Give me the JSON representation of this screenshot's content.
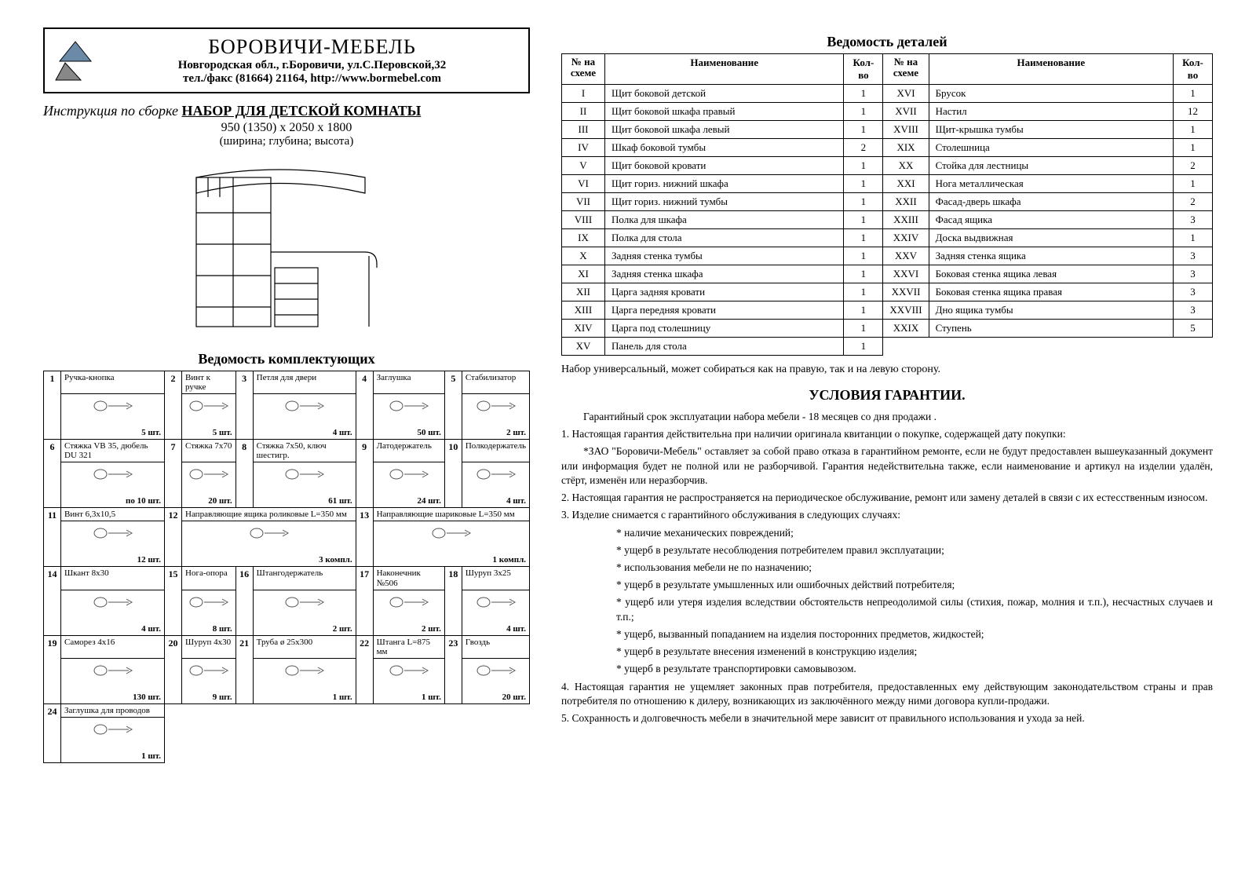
{
  "company": {
    "name": "БОРОВИЧИ-МЕБЕЛЬ",
    "address": "Новгородская обл., г.Боровичи, ул.С.Перовской,32",
    "contact": "тел./факс (81664) 21164, http://www.bormebel.com"
  },
  "instruction": {
    "prefix": "Инструкция по сборке ",
    "title": "НАБОР ДЛЯ ДЕТСКОЙ КОМНАТЫ",
    "dimensions": "950 (1350) x 2050 x 1800",
    "dims_note": "(ширина; глубина; высота)"
  },
  "hardware_title": "Ведомость комплектующих",
  "hardware_rows": [
    [
      {
        "n": "1",
        "name": "Ручка-кнопка",
        "qty": "5 шт."
      },
      {
        "n": "2",
        "name": "Винт к ручке",
        "qty": "5 шт."
      },
      {
        "n": "3",
        "name": "Петля для двери",
        "qty": "4 шт."
      },
      {
        "n": "4",
        "name": "Заглушка",
        "qty": "50 шт."
      },
      {
        "n": "5",
        "name": "Стабилизатор",
        "qty": "2 шт."
      }
    ],
    [
      {
        "n": "6",
        "name": "Стяжка VB 35, дюбель DU 321",
        "qty": "по 10 шт."
      },
      {
        "n": "7",
        "name": "Стяжка 7x70",
        "qty": "20 шт."
      },
      {
        "n": "8",
        "name": "Стяжка 7x50, ключ шестигр.",
        "qty": "61 шт."
      },
      {
        "n": "9",
        "name": "Латодержатель",
        "qty": "24 шт."
      },
      {
        "n": "10",
        "name": "Полкодержатель",
        "qty": "4 шт."
      }
    ],
    [
      {
        "n": "11",
        "name": "Винт 6,3x10,5",
        "qty": "12 шт."
      },
      {
        "n": "12",
        "name": "Направляющие ящика роликовые L=350 мм",
        "qty": "3 компл.",
        "wide": true
      },
      {
        "n": "13",
        "name": "Направляющие шариковые L=350 мм",
        "qty": "1 компл.",
        "wide": true
      }
    ],
    [
      {
        "n": "14",
        "name": "Шкант 8x30",
        "qty": "4 шт."
      },
      {
        "n": "15",
        "name": "Нога-опора",
        "qty": "8 шт."
      },
      {
        "n": "16",
        "name": "Штангодержатель",
        "qty": "2 шт."
      },
      {
        "n": "17",
        "name": "Наконечник №506",
        "qty": "2 шт."
      },
      {
        "n": "18",
        "name": "Шуруп 3x25",
        "qty": "4 шт."
      }
    ],
    [
      {
        "n": "19",
        "name": "Саморез 4x16",
        "qty": "130 шт."
      },
      {
        "n": "20",
        "name": "Шуруп 4x30",
        "qty": "9 шт."
      },
      {
        "n": "21",
        "name": "Труба ø 25x300",
        "qty": "1 шт."
      },
      {
        "n": "22",
        "name": "Штанга L=875 мм",
        "qty": "1 шт."
      },
      {
        "n": "23",
        "name": "Гвоздь",
        "qty": "20 шт."
      }
    ],
    [
      {
        "n": "24",
        "name": "Заглушка для проводов",
        "qty": "1 шт."
      }
    ]
  ],
  "details_title": "Ведомость деталей",
  "details_header": {
    "num": "№\nна схеме",
    "name": "Наименование",
    "qty": "Кол-во"
  },
  "details_left": [
    {
      "rn": "I",
      "name": "Щит боковой детской",
      "qty": "1"
    },
    {
      "rn": "II",
      "name": "Щит боковой шкафа правый",
      "qty": "1"
    },
    {
      "rn": "III",
      "name": "Щит боковой шкафа левый",
      "qty": "1"
    },
    {
      "rn": "IV",
      "name": "Шкаф боковой тумбы",
      "qty": "2"
    },
    {
      "rn": "V",
      "name": "Щит боковой кровати",
      "qty": "1"
    },
    {
      "rn": "VI",
      "name": "Щит гориз. нижний шкафа",
      "qty": "1"
    },
    {
      "rn": "VII",
      "name": "Щит гориз. нижний тумбы",
      "qty": "1"
    },
    {
      "rn": "VIII",
      "name": "Полка для шкафа",
      "qty": "1"
    },
    {
      "rn": "IX",
      "name": "Полка для стола",
      "qty": "1"
    },
    {
      "rn": "X",
      "name": "Задняя стенка тумбы",
      "qty": "1"
    },
    {
      "rn": "XI",
      "name": "Задняя стенка шкафа",
      "qty": "1"
    },
    {
      "rn": "XII",
      "name": "Царга задняя кровати",
      "qty": "1"
    },
    {
      "rn": "XIII",
      "name": "Царга передняя кровати",
      "qty": "1"
    },
    {
      "rn": "XIV",
      "name": "Царга под столешницу",
      "qty": "1"
    },
    {
      "rn": "XV",
      "name": "Панель для стола",
      "qty": "1"
    }
  ],
  "details_right": [
    {
      "rn": "XVI",
      "name": "Брусок",
      "qty": "1"
    },
    {
      "rn": "XVII",
      "name": "Настил",
      "qty": "12"
    },
    {
      "rn": "XVIII",
      "name": "Щит-крышка тумбы",
      "qty": "1"
    },
    {
      "rn": "XIX",
      "name": "Столешница",
      "qty": "1"
    },
    {
      "rn": "XX",
      "name": "Стойка для лестницы",
      "qty": "2"
    },
    {
      "rn": "XXI",
      "name": "Нога металлическая",
      "qty": "1"
    },
    {
      "rn": "XXII",
      "name": "Фасад-дверь шкафа",
      "qty": "2"
    },
    {
      "rn": "XXIII",
      "name": "Фасад ящика",
      "qty": "3"
    },
    {
      "rn": "XXIV",
      "name": "Доска выдвижная",
      "qty": "1"
    },
    {
      "rn": "XXV",
      "name": "Задняя стенка ящика",
      "qty": "3"
    },
    {
      "rn": "XXVI",
      "name": "Боковая стенка ящика левая",
      "qty": "3"
    },
    {
      "rn": "XXVII",
      "name": "Боковая стенка ящика правая",
      "qty": "3"
    },
    {
      "rn": "XXVIII",
      "name": "Дно ящика тумбы",
      "qty": "3"
    },
    {
      "rn": "XXIX",
      "name": "Ступень",
      "qty": "5"
    }
  ],
  "universal_note": "Набор универсальный, может собираться как на правую, так и на левую сторону.",
  "warranty_title": "УСЛОВИЯ ГАРАНТИИ.",
  "warranty_paragraphs": [
    {
      "t": "Гарантийный срок эксплуатации набора мебели - 18 месяцев со дня продажи .",
      "cls": "indent"
    },
    {
      "t": "1. Настоящая гарантия действительна при наличии оригинала квитанции о покупке, содержащей дату покупки:",
      "cls": ""
    },
    {
      "t": "*ЗАО \"Боровичи-Мебель\" оставляет за собой право отказа в гарантийном ремонте, если не будут предоставлен вышеуказанный документ или информация будет не полной или не разборчивой. Гарантия недействительна также, если наименование и артикул на изделии удалён, стёрт, изменён или неразборчив.",
      "cls": "indent"
    },
    {
      "t": "2. Настоящая гарантия не распространяется на периодическое обслуживание, ремонт или замену деталей в связи с их естесственным износом.",
      "cls": ""
    },
    {
      "t": "3. Изделие снимается с гарантийного обслуживания в следующих случаях:",
      "cls": ""
    },
    {
      "t": "* наличие механических повреждений;",
      "cls": "bullet"
    },
    {
      "t": "* ущерб в результате несоблюдения потребителем правил эксплуатации;",
      "cls": "bullet"
    },
    {
      "t": "* использования мебели не по назначению;",
      "cls": "bullet"
    },
    {
      "t": "* ущерб в результате умышленных или ошибочных действий потребителя;",
      "cls": "bullet"
    },
    {
      "t": "* ущерб или утеря изделия вследствии обстоятельств непреодолимой силы (стихия, пожар, молния и т.п.), несчастных случаев и т.п.;",
      "cls": "bullet"
    },
    {
      "t": "* ущерб, вызванный попаданием на изделия посторонних предметов, жидкостей;",
      "cls": "bullet"
    },
    {
      "t": "* ущерб в результате внесения изменений в конструкцию изделия;",
      "cls": "bullet"
    },
    {
      "t": "* ущерб в результате транспортировки самовывозом.",
      "cls": "bullet"
    },
    {
      "t": "4. Настоящая гарантия не ущемляет законных прав потребителя, предоставленных ему действующим законодательством страны и прав потребителя по отношению к дилеру, возникающих из заключённого между ними договора купли-продажи.",
      "cls": ""
    },
    {
      "t": "5. Сохранность и долговечность мебели в значительной мере зависит от правильного использования и ухода за ней.",
      "cls": ""
    }
  ]
}
